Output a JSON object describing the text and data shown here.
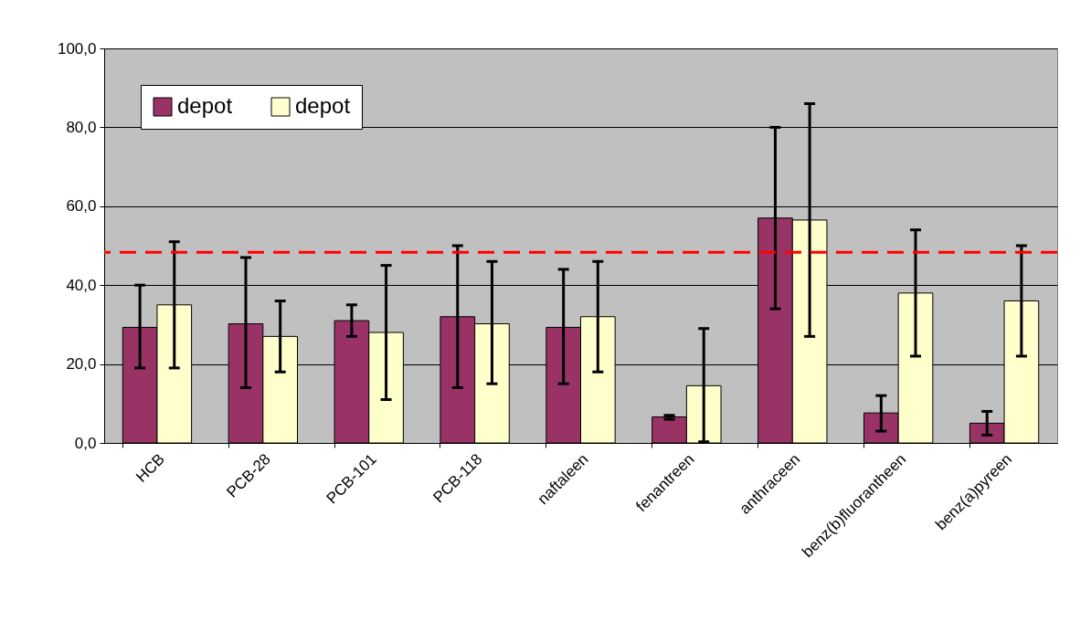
{
  "chart_data": {
    "type": "bar",
    "categories": [
      "HCB",
      "PCB-28",
      "PCB-101",
      "PCB-118",
      "naftaleen",
      "fenantreen",
      "anthraceen",
      "benz(b)fluorantheen",
      "benz(a)pyreen"
    ],
    "series": [
      {
        "name": "depot",
        "color": "#993366",
        "values": [
          29.3,
          30.2,
          31,
          32,
          29.3,
          6.6,
          57,
          7.6,
          5
        ],
        "errors": [
          [
            19,
            40
          ],
          [
            14,
            47
          ],
          [
            27,
            35
          ],
          [
            14,
            50
          ],
          [
            15,
            44
          ],
          [
            6,
            7
          ],
          [
            34,
            80
          ],
          [
            3,
            12
          ],
          [
            2,
            8
          ]
        ]
      },
      {
        "name": "depot",
        "color": "#ffffcc",
        "values": [
          35,
          27,
          28,
          30.2,
          32,
          14.5,
          56.5,
          38,
          36
        ],
        "errors": [
          [
            19,
            51
          ],
          [
            18,
            36
          ],
          [
            11,
            45
          ],
          [
            15,
            46
          ],
          [
            18,
            46
          ],
          [
            0.3,
            29
          ],
          [
            27,
            86
          ],
          [
            22,
            54
          ],
          [
            22,
            50
          ]
        ]
      }
    ],
    "ylim": [
      0,
      100
    ],
    "yticks": [
      {
        "value": 0,
        "label": "0,0"
      },
      {
        "value": 20,
        "label": "20,0"
      },
      {
        "value": 40,
        "label": "40,0"
      },
      {
        "value": 60,
        "label": "60,0"
      },
      {
        "value": 80,
        "label": "80,0"
      },
      {
        "value": 100,
        "label": "100,0"
      }
    ],
    "ref_lines": [
      {
        "axis": "y",
        "value": 48.3,
        "color": "#ff0000",
        "line_style": "dashed"
      }
    ],
    "grid": "y",
    "legend": "top left"
  }
}
